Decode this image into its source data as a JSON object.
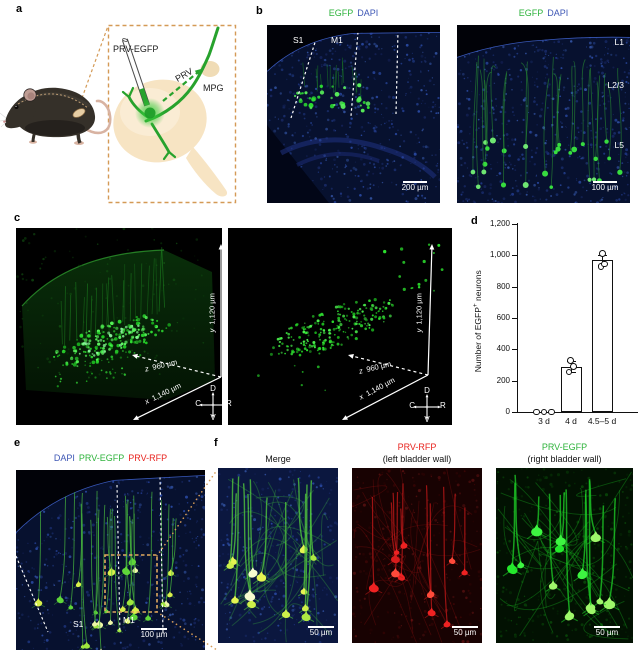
{
  "panel_labels": {
    "a": "a",
    "b": "b",
    "c": "c",
    "d": "d",
    "e": "e",
    "f": "f"
  },
  "colors": {
    "egfp_green": "#2eb33b",
    "dapi_blue": "#3e57b5",
    "rfp_red": "#e8231e",
    "accent_orange": "#d49a56"
  },
  "a": {
    "probe": "PRV-EGFP",
    "virus": "PRV",
    "ganglion": "MPG"
  },
  "b": {
    "stain_egfp": "EGFP",
    "stain_dapi": "DAPI",
    "s1": "S1",
    "m1": "M1",
    "scale_left": "200 µm",
    "l1": "L1",
    "l23": "L2/3",
    "l5": "L5",
    "scale_right": "100 µm"
  },
  "c": {
    "axis_y_letter": "y",
    "axis_y_value": "1,120 µm",
    "axis_z_letter": "z",
    "axis_z_value": "960 µm",
    "axis_x_letter": "x",
    "axis_x_value": "1,140 µm",
    "dir_d": "D",
    "dir_v": "V",
    "dir_c": "C",
    "dir_r": "R"
  },
  "e": {
    "stain_dapi": "DAPI",
    "stain_egfp": "PRV-EGFP",
    "stain_rfp": "PRV-RFP",
    "s1": "S1",
    "m1": "M1",
    "scale": "100 µm"
  },
  "f": {
    "merge_title": "Merge",
    "rfp_title": "PRV-RFP",
    "rfp_sub": "(left bladder wall)",
    "egfp_title": "PRV-EGFP",
    "egfp_sub": "(right bladder wall)",
    "scale": "50 µm"
  },
  "chart_data": {
    "type": "bar",
    "title": "",
    "xlabel": "",
    "ylabel": "Number of EGFP+ neurons",
    "ylabel_parts": [
      "Number of EGFP",
      "+",
      " neurons"
    ],
    "categories": [
      "3 d",
      "4 d",
      "4.5–5 d"
    ],
    "values": [
      0,
      290,
      970
    ],
    "errors": [
      0,
      35,
      33
    ],
    "points": [
      [
        0,
        0,
        0
      ],
      [
        255,
        292,
        328
      ],
      [
        930,
        945,
        1010
      ]
    ],
    "yticks": [
      0,
      200,
      400,
      600,
      800,
      1000,
      1200
    ],
    "ytick_labels": [
      "0",
      "200",
      "400",
      "600",
      "800",
      "1,000",
      "1,200"
    ],
    "ylim": [
      0,
      1200
    ],
    "grid": false,
    "legend": null,
    "bar_fill": "#ffffff",
    "bar_stroke": "#000000"
  }
}
